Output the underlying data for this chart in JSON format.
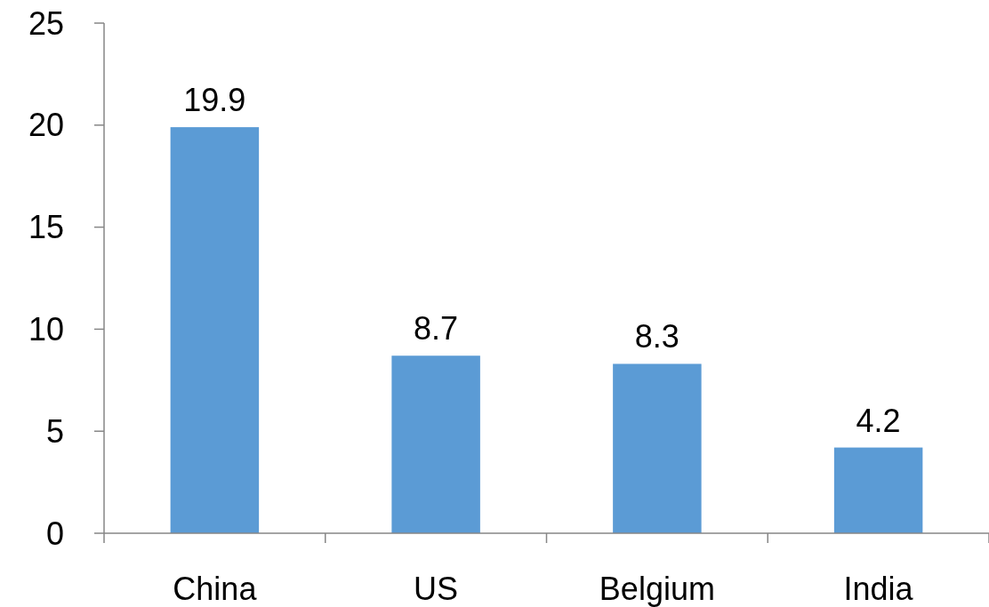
{
  "chart_data": {
    "type": "bar",
    "categories": [
      "China",
      "US",
      "Belgium",
      "India"
    ],
    "values": [
      19.9,
      8.7,
      8.3,
      4.2
    ],
    "color": "#5b9bd5",
    "ylim": [
      0,
      25
    ],
    "yticks": [
      0,
      5,
      10,
      15,
      20,
      25
    ],
    "data_labels": true,
    "grid": false
  }
}
